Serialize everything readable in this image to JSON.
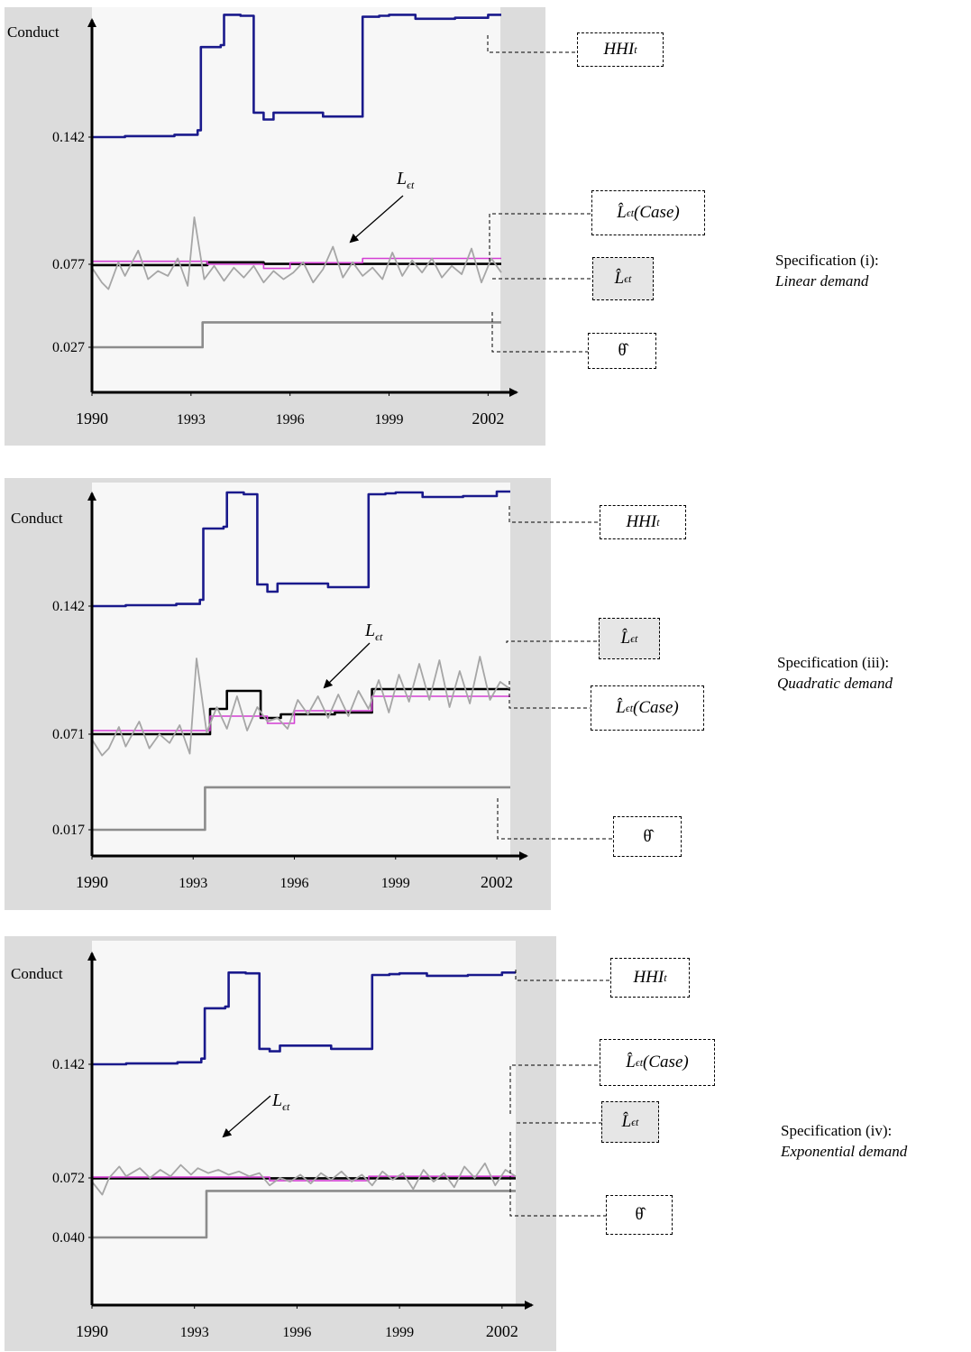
{
  "y_axis_title": "Conduct",
  "x_ticks": [
    "1990",
    "1993",
    "1996",
    "1999",
    "2002"
  ],
  "colors": {
    "hhi": "#1a1a8c",
    "l_hat": "#000000",
    "l_hat_case": "#d43fd4",
    "l_eps": "#a6a6a6",
    "theta": "#8c8c8c",
    "panel_bg": "#dcdcdc",
    "plot_bg": "#f7f7f7"
  },
  "labels": {
    "hhi": "HHI",
    "hhi_sub": "t",
    "l_eps": "L",
    "l_eps_sub": "ϵt",
    "l_hat": "L̂",
    "l_hat_sub": "ϵt",
    "l_hat_case_sub": "ϵt",
    "case": "(Case)",
    "theta": "θ̂"
  },
  "panels": [
    {
      "spec_line": "Specification (i):",
      "spec_model": "Linear demand",
      "y_ticks": [
        "0.142",
        "0.077",
        "0.027"
      ]
    },
    {
      "spec_line": "Specification (iii):",
      "spec_model": "Quadratic demand",
      "y_ticks": [
        "0.142",
        "0.071",
        "0.017"
      ]
    },
    {
      "spec_line": "Specification (iv):",
      "spec_model": "Exponential demand",
      "y_ticks": [
        "0.142",
        "0.072",
        "0.040"
      ]
    }
  ],
  "chart_data": [
    {
      "type": "line",
      "title": "Specification (i): Linear demand",
      "ylabel": "Conduct",
      "x_ticks": [
        1990,
        1993,
        1996,
        1999,
        2002
      ],
      "y_ticks": [
        0.142,
        0.077,
        0.027
      ],
      "series": [
        {
          "name": "HHI_t",
          "x": [
            1990.0,
            1991.0,
            1992.5,
            1993.2,
            1993.3,
            1993.9,
            1994.0,
            1994.5,
            1994.9,
            1995.2,
            1995.5,
            1996.0,
            1997.0,
            1998.0,
            1998.2,
            1998.7,
            1999.0,
            1999.8,
            2001.0,
            2002.0,
            2002.4
          ],
          "y": [
            0.142,
            0.1425,
            0.1432,
            0.1455,
            0.188,
            0.189,
            0.2045,
            0.204,
            0.1545,
            0.151,
            0.1545,
            0.1545,
            0.1525,
            0.1525,
            0.2035,
            0.204,
            0.2045,
            0.2025,
            0.203,
            0.2045,
            0.2045
          ]
        },
        {
          "name": "L̂_ϵt",
          "x": [
            1990.0,
            1993.3,
            1993.5,
            1995.0,
            1995.2,
            2002.4
          ],
          "y": [
            0.0765,
            0.0765,
            0.078,
            0.078,
            0.0772,
            0.0772
          ]
        },
        {
          "name": "L̂_ϵt(Case)",
          "x": [
            1990.0,
            1993.4,
            1993.5,
            1994.5,
            1995.2,
            1995.8,
            1996.0,
            1998.0,
            1998.2,
            2002.4
          ],
          "y": [
            0.0785,
            0.0785,
            0.077,
            0.077,
            0.0745,
            0.0745,
            0.0778,
            0.0778,
            0.08,
            0.08
          ]
        },
        {
          "name": "L_ϵt",
          "x": [
            1990,
            1990.3,
            1990.5,
            1990.8,
            1991.0,
            1991.4,
            1991.7,
            1992.0,
            1992.3,
            1992.6,
            1992.9,
            1993.1,
            1993.4,
            1993.7,
            1994.0,
            1994.3,
            1994.6,
            1994.9,
            1995.2,
            1995.5,
            1995.8,
            1996.1,
            1996.4,
            1996.7,
            1997.0,
            1997.3,
            1997.6,
            1997.9,
            1998.2,
            1998.5,
            1998.8,
            1999.1,
            1999.4,
            1999.7,
            2000.0,
            2000.3,
            2000.6,
            2000.9,
            2001.2,
            2001.5,
            2001.8,
            2002.1,
            2002.4
          ],
          "y": [
            0.075,
            0.066,
            0.062,
            0.078,
            0.07,
            0.084,
            0.068,
            0.073,
            0.07,
            0.08,
            0.064,
            0.101,
            0.068,
            0.076,
            0.067,
            0.075,
            0.069,
            0.076,
            0.066,
            0.073,
            0.068,
            0.072,
            0.078,
            0.066,
            0.074,
            0.086,
            0.069,
            0.078,
            0.07,
            0.075,
            0.068,
            0.083,
            0.07,
            0.079,
            0.072,
            0.08,
            0.069,
            0.076,
            0.071,
            0.085,
            0.066,
            0.08,
            0.072
          ]
        },
        {
          "name": "θ̂",
          "x": [
            1990.0,
            1993.3,
            1993.35,
            2002.4
          ],
          "y": [
            0.027,
            0.027,
            0.042,
            0.042
          ]
        }
      ]
    },
    {
      "type": "line",
      "title": "Specification (iii): Quadratic demand",
      "ylabel": "Conduct",
      "x_ticks": [
        1990,
        1993,
        1996,
        1999,
        2002
      ],
      "y_ticks": [
        0.142,
        0.071,
        0.017
      ],
      "series": [
        {
          "name": "HHI_t",
          "x": [
            1990.0,
            1991.0,
            1992.5,
            1993.2,
            1993.3,
            1993.9,
            1994.0,
            1994.5,
            1994.9,
            1995.2,
            1995.5,
            1996.0,
            1997.0,
            1998.0,
            1998.2,
            1998.7,
            1999.0,
            1999.8,
            2001.0,
            2002.0,
            2002.4
          ],
          "y": [
            0.142,
            0.1425,
            0.1432,
            0.1455,
            0.185,
            0.186,
            0.205,
            0.204,
            0.154,
            0.15,
            0.1545,
            0.1545,
            0.1525,
            0.1525,
            0.204,
            0.2045,
            0.205,
            0.2025,
            0.203,
            0.2055,
            0.2055
          ]
        },
        {
          "name": "L̂_ϵt",
          "x": [
            1990.0,
            1993.4,
            1993.5,
            1993.9,
            1994.0,
            1994.6,
            1995.0,
            1995.3,
            1995.6,
            1997.2,
            1998.2,
            1998.3,
            2002.4
          ],
          "y": [
            0.071,
            0.071,
            0.085,
            0.085,
            0.095,
            0.095,
            0.08,
            0.08,
            0.082,
            0.083,
            0.083,
            0.096,
            0.096
          ]
        },
        {
          "name": "L̂_ϵt(Case)",
          "x": [
            1990.0,
            1993.4,
            1993.5,
            1994.5,
            1995.2,
            1995.8,
            1996.0,
            1998.2,
            1998.3,
            2002.4
          ],
          "y": [
            0.073,
            0.073,
            0.081,
            0.081,
            0.077,
            0.077,
            0.084,
            0.084,
            0.092,
            0.092
          ]
        },
        {
          "name": "L_ϵt",
          "x": [
            1990,
            1990.3,
            1990.5,
            1990.8,
            1991.0,
            1991.4,
            1991.7,
            1992.0,
            1992.3,
            1992.6,
            1992.9,
            1993.1,
            1993.4,
            1993.7,
            1994.0,
            1994.3,
            1994.6,
            1994.9,
            1995.2,
            1995.5,
            1995.8,
            1996.1,
            1996.4,
            1996.7,
            1997.0,
            1997.3,
            1997.6,
            1997.9,
            1998.2,
            1998.5,
            1998.8,
            1999.1,
            1999.4,
            1999.7,
            2000.0,
            2000.3,
            2000.6,
            2000.9,
            2001.2,
            2001.5,
            2001.8,
            2002.1,
            2002.4
          ],
          "y": [
            0.068,
            0.059,
            0.063,
            0.075,
            0.064,
            0.078,
            0.063,
            0.071,
            0.066,
            0.076,
            0.06,
            0.113,
            0.072,
            0.086,
            0.074,
            0.092,
            0.073,
            0.086,
            0.078,
            0.08,
            0.074,
            0.09,
            0.082,
            0.092,
            0.08,
            0.093,
            0.081,
            0.095,
            0.085,
            0.101,
            0.083,
            0.104,
            0.089,
            0.11,
            0.09,
            0.112,
            0.086,
            0.106,
            0.088,
            0.114,
            0.09,
            0.1,
            0.096
          ]
        },
        {
          "name": "θ̂",
          "x": [
            1990.0,
            1993.3,
            1993.35,
            2002.4
          ],
          "y": [
            0.017,
            0.017,
            0.041,
            0.041
          ]
        }
      ]
    },
    {
      "type": "line",
      "title": "Specification (iv): Exponential demand",
      "ylabel": "Conduct",
      "x_ticks": [
        1990,
        1993,
        1996,
        1999,
        2002
      ],
      "y_ticks": [
        0.142,
        0.072,
        0.04
      ],
      "series": [
        {
          "name": "HHI_t",
          "x": [
            1990.0,
            1991.0,
            1992.5,
            1993.2,
            1993.3,
            1993.9,
            1994.0,
            1994.5,
            1994.9,
            1995.2,
            1995.5,
            1996.0,
            1997.0,
            1998.0,
            1998.2,
            1998.7,
            1999.0,
            1999.8,
            2001.0,
            2002.0,
            2002.4
          ],
          "y": [
            0.142,
            0.1425,
            0.1432,
            0.1455,
            0.1765,
            0.1775,
            0.1985,
            0.198,
            0.1515,
            0.15,
            0.1535,
            0.1535,
            0.1515,
            0.1515,
            0.197,
            0.1975,
            0.198,
            0.1965,
            0.197,
            0.1985,
            0.1985
          ]
        },
        {
          "name": "L̂_ϵt",
          "x": [
            1990.0,
            2002.4
          ],
          "y": [
            0.0718,
            0.0718
          ]
        },
        {
          "name": "L̂_ϵt(Case)",
          "x": [
            1990.0,
            1995.0,
            1995.2,
            1997.9,
            1998.1,
            2002.4
          ],
          "y": [
            0.0725,
            0.0725,
            0.0705,
            0.0705,
            0.073,
            0.073
          ]
        },
        {
          "name": "L_ϵt",
          "x": [
            1990,
            1990.3,
            1990.5,
            1990.8,
            1991.0,
            1991.4,
            1991.7,
            1992.0,
            1992.3,
            1992.6,
            1992.9,
            1993.1,
            1993.4,
            1993.7,
            1994.0,
            1994.3,
            1994.6,
            1994.9,
            1995.2,
            1995.5,
            1995.8,
            1996.1,
            1996.4,
            1996.7,
            1997.0,
            1997.3,
            1997.6,
            1997.9,
            1998.2,
            1998.5,
            1998.8,
            1999.1,
            1999.4,
            1999.7,
            2000.0,
            2000.3,
            2000.6,
            2000.9,
            2001.2,
            2001.5,
            2001.8,
            2002.1,
            2002.4
          ],
          "y": [
            0.07,
            0.063,
            0.072,
            0.079,
            0.073,
            0.078,
            0.072,
            0.077,
            0.073,
            0.08,
            0.074,
            0.078,
            0.075,
            0.077,
            0.074,
            0.076,
            0.073,
            0.075,
            0.068,
            0.072,
            0.07,
            0.074,
            0.069,
            0.075,
            0.071,
            0.076,
            0.07,
            0.074,
            0.068,
            0.076,
            0.071,
            0.075,
            0.066,
            0.077,
            0.07,
            0.075,
            0.067,
            0.079,
            0.072,
            0.081,
            0.068,
            0.077,
            0.073
          ]
        },
        {
          "name": "θ̂",
          "x": [
            1990.0,
            1993.3,
            1993.35,
            2002.4
          ],
          "y": [
            0.04,
            0.04,
            0.065,
            0.065
          ]
        }
      ]
    }
  ]
}
